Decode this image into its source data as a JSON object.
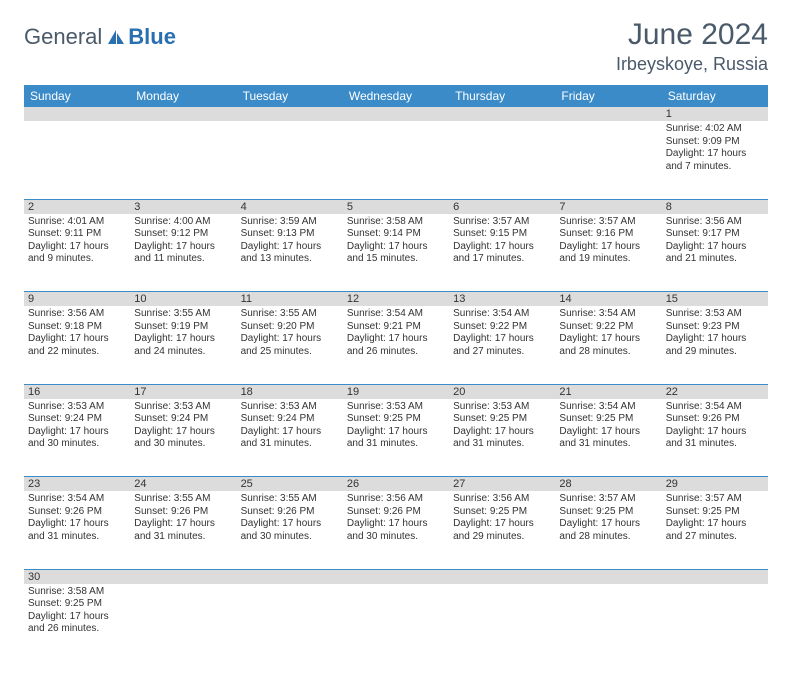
{
  "branding": {
    "part1": "General",
    "part2": "Blue",
    "logo_color": "#2a6fb0",
    "text_color": "#4a5a6a"
  },
  "title": "June 2024",
  "location": "Irbeyskoye, Russia",
  "header_bg": "#3b8bc9",
  "daynum_bg": "#dcdcdc",
  "weekdays": [
    "Sunday",
    "Monday",
    "Tuesday",
    "Wednesday",
    "Thursday",
    "Friday",
    "Saturday"
  ],
  "weeks": [
    [
      null,
      null,
      null,
      null,
      null,
      null,
      {
        "n": "1",
        "sunrise": "Sunrise: 4:02 AM",
        "sunset": "Sunset: 9:09 PM",
        "daylight": "Daylight: 17 hours and 7 minutes."
      }
    ],
    [
      {
        "n": "2",
        "sunrise": "Sunrise: 4:01 AM",
        "sunset": "Sunset: 9:11 PM",
        "daylight": "Daylight: 17 hours and 9 minutes."
      },
      {
        "n": "3",
        "sunrise": "Sunrise: 4:00 AM",
        "sunset": "Sunset: 9:12 PM",
        "daylight": "Daylight: 17 hours and 11 minutes."
      },
      {
        "n": "4",
        "sunrise": "Sunrise: 3:59 AM",
        "sunset": "Sunset: 9:13 PM",
        "daylight": "Daylight: 17 hours and 13 minutes."
      },
      {
        "n": "5",
        "sunrise": "Sunrise: 3:58 AM",
        "sunset": "Sunset: 9:14 PM",
        "daylight": "Daylight: 17 hours and 15 minutes."
      },
      {
        "n": "6",
        "sunrise": "Sunrise: 3:57 AM",
        "sunset": "Sunset: 9:15 PM",
        "daylight": "Daylight: 17 hours and 17 minutes."
      },
      {
        "n": "7",
        "sunrise": "Sunrise: 3:57 AM",
        "sunset": "Sunset: 9:16 PM",
        "daylight": "Daylight: 17 hours and 19 minutes."
      },
      {
        "n": "8",
        "sunrise": "Sunrise: 3:56 AM",
        "sunset": "Sunset: 9:17 PM",
        "daylight": "Daylight: 17 hours and 21 minutes."
      }
    ],
    [
      {
        "n": "9",
        "sunrise": "Sunrise: 3:56 AM",
        "sunset": "Sunset: 9:18 PM",
        "daylight": "Daylight: 17 hours and 22 minutes."
      },
      {
        "n": "10",
        "sunrise": "Sunrise: 3:55 AM",
        "sunset": "Sunset: 9:19 PM",
        "daylight": "Daylight: 17 hours and 24 minutes."
      },
      {
        "n": "11",
        "sunrise": "Sunrise: 3:55 AM",
        "sunset": "Sunset: 9:20 PM",
        "daylight": "Daylight: 17 hours and 25 minutes."
      },
      {
        "n": "12",
        "sunrise": "Sunrise: 3:54 AM",
        "sunset": "Sunset: 9:21 PM",
        "daylight": "Daylight: 17 hours and 26 minutes."
      },
      {
        "n": "13",
        "sunrise": "Sunrise: 3:54 AM",
        "sunset": "Sunset: 9:22 PM",
        "daylight": "Daylight: 17 hours and 27 minutes."
      },
      {
        "n": "14",
        "sunrise": "Sunrise: 3:54 AM",
        "sunset": "Sunset: 9:22 PM",
        "daylight": "Daylight: 17 hours and 28 minutes."
      },
      {
        "n": "15",
        "sunrise": "Sunrise: 3:53 AM",
        "sunset": "Sunset: 9:23 PM",
        "daylight": "Daylight: 17 hours and 29 minutes."
      }
    ],
    [
      {
        "n": "16",
        "sunrise": "Sunrise: 3:53 AM",
        "sunset": "Sunset: 9:24 PM",
        "daylight": "Daylight: 17 hours and 30 minutes."
      },
      {
        "n": "17",
        "sunrise": "Sunrise: 3:53 AM",
        "sunset": "Sunset: 9:24 PM",
        "daylight": "Daylight: 17 hours and 30 minutes."
      },
      {
        "n": "18",
        "sunrise": "Sunrise: 3:53 AM",
        "sunset": "Sunset: 9:24 PM",
        "daylight": "Daylight: 17 hours and 31 minutes."
      },
      {
        "n": "19",
        "sunrise": "Sunrise: 3:53 AM",
        "sunset": "Sunset: 9:25 PM",
        "daylight": "Daylight: 17 hours and 31 minutes."
      },
      {
        "n": "20",
        "sunrise": "Sunrise: 3:53 AM",
        "sunset": "Sunset: 9:25 PM",
        "daylight": "Daylight: 17 hours and 31 minutes."
      },
      {
        "n": "21",
        "sunrise": "Sunrise: 3:54 AM",
        "sunset": "Sunset: 9:25 PM",
        "daylight": "Daylight: 17 hours and 31 minutes."
      },
      {
        "n": "22",
        "sunrise": "Sunrise: 3:54 AM",
        "sunset": "Sunset: 9:26 PM",
        "daylight": "Daylight: 17 hours and 31 minutes."
      }
    ],
    [
      {
        "n": "23",
        "sunrise": "Sunrise: 3:54 AM",
        "sunset": "Sunset: 9:26 PM",
        "daylight": "Daylight: 17 hours and 31 minutes."
      },
      {
        "n": "24",
        "sunrise": "Sunrise: 3:55 AM",
        "sunset": "Sunset: 9:26 PM",
        "daylight": "Daylight: 17 hours and 31 minutes."
      },
      {
        "n": "25",
        "sunrise": "Sunrise: 3:55 AM",
        "sunset": "Sunset: 9:26 PM",
        "daylight": "Daylight: 17 hours and 30 minutes."
      },
      {
        "n": "26",
        "sunrise": "Sunrise: 3:56 AM",
        "sunset": "Sunset: 9:26 PM",
        "daylight": "Daylight: 17 hours and 30 minutes."
      },
      {
        "n": "27",
        "sunrise": "Sunrise: 3:56 AM",
        "sunset": "Sunset: 9:25 PM",
        "daylight": "Daylight: 17 hours and 29 minutes."
      },
      {
        "n": "28",
        "sunrise": "Sunrise: 3:57 AM",
        "sunset": "Sunset: 9:25 PM",
        "daylight": "Daylight: 17 hours and 28 minutes."
      },
      {
        "n": "29",
        "sunrise": "Sunrise: 3:57 AM",
        "sunset": "Sunset: 9:25 PM",
        "daylight": "Daylight: 17 hours and 27 minutes."
      }
    ],
    [
      {
        "n": "30",
        "sunrise": "Sunrise: 3:58 AM",
        "sunset": "Sunset: 9:25 PM",
        "daylight": "Daylight: 17 hours and 26 minutes."
      },
      null,
      null,
      null,
      null,
      null,
      null
    ]
  ]
}
